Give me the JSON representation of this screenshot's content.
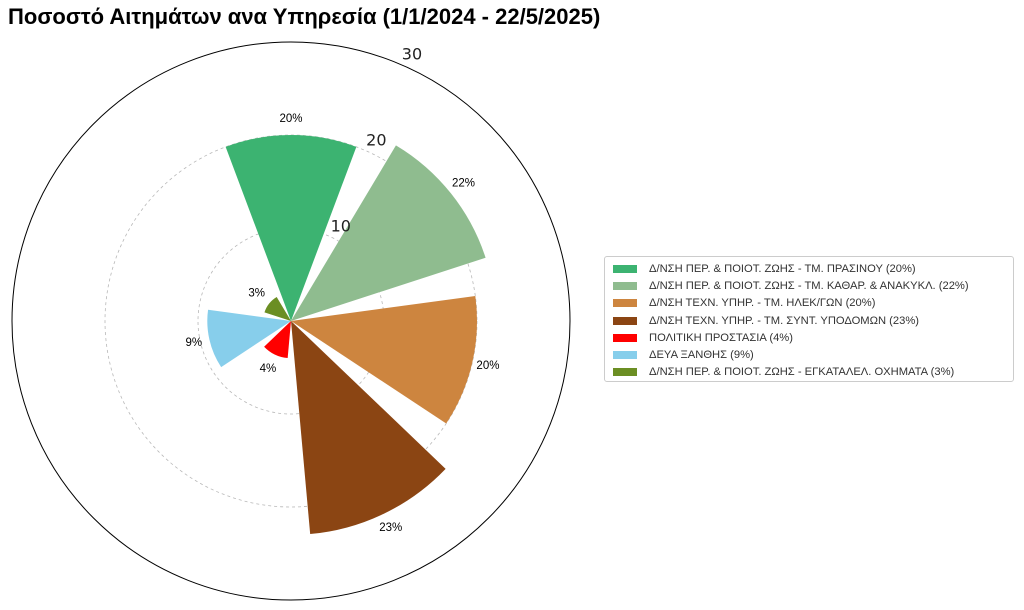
{
  "chart_data": {
    "type": "polar-bar",
    "title": "Ποσοστό Αιτημάτων ανα Υπηρεσία (1/1/2024 - 22/5/2025)",
    "radial_ticks": [
      10,
      20,
      30
    ],
    "rlim": [
      0,
      30
    ],
    "grid": true,
    "legend_position": "right",
    "categories": [
      "Δ/ΝΣΗ ΠΕΡ. & ΠΟΙΟΤ. ΖΩΗΣ - ΤΜ. ΠΡΑΣΙΝΟΥ",
      "Δ/ΝΣΗ ΠΕΡ. & ΠΟΙΟΤ. ΖΩΗΣ - ΤΜ. ΚΑΘΑΡ. & ΑΝΑΚΥΚΛ.",
      "Δ/ΝΣΗ ΤΕΧΝ. ΥΠΗΡ. - ΤΜ. ΗΛΕΚ/ΓΩΝ",
      "Δ/ΝΣΗ ΤΕΧΝ. ΥΠΗΡ. - ΤΜ. ΣΥΝΤ. ΥΠΟΔΟΜΩΝ",
      "ΠΟΛΙΤΙΚΗ ΠΡΟΣΤΑΣΙΑ",
      "ΔΕΥΑ ΞΑΝΘΗΣ",
      "Δ/ΝΣΗ ΠΕΡ. & ΠΟΙΟΤ. ΖΩΗΣ - ΕΓΚΑΤΑΛΕΛ. ΟΧΗΜΑΤΑ"
    ],
    "values": [
      20,
      22,
      20,
      23,
      4,
      9,
      3
    ],
    "value_labels": [
      "20%",
      "22%",
      "20%",
      "23%",
      "4%",
      "9%",
      "3%"
    ],
    "legend_labels": [
      "Δ/ΝΣΗ ΠΕΡ. & ΠΟΙΟΤ. ΖΩΗΣ - ΤΜ. ΠΡΑΣΙΝΟΥ (20%)",
      "Δ/ΝΣΗ ΠΕΡ. & ΠΟΙΟΤ. ΖΩΗΣ - ΤΜ. ΚΑΘΑΡ. & ΑΝΑΚΥΚΛ. (22%)",
      "Δ/ΝΣΗ ΤΕΧΝ. ΥΠΗΡ. - ΤΜ. ΗΛΕΚ/ΓΩΝ (20%)",
      "Δ/ΝΣΗ ΤΕΧΝ. ΥΠΗΡ. - ΤΜ. ΣΥΝΤ. ΥΠΟΔΟΜΩΝ (23%)",
      "ΠΟΛΙΤΙΚΗ ΠΡΟΣΤΑΣΙΑ (4%)",
      "ΔΕΥΑ ΞΑΝΘΗΣ (9%)",
      "Δ/ΝΣΗ ΠΕΡ. & ΠΟΙΟΤ. ΖΩΗΣ - ΕΓΚΑΤΑΛΕΛ. ΟΧΗΜΑΤΑ (3%)"
    ],
    "colors": [
      "#3cb371",
      "#8fbc8f",
      "#cd853f",
      "#8b4513",
      "#ff0000",
      "#87ceeb",
      "#6b8e23"
    ]
  }
}
